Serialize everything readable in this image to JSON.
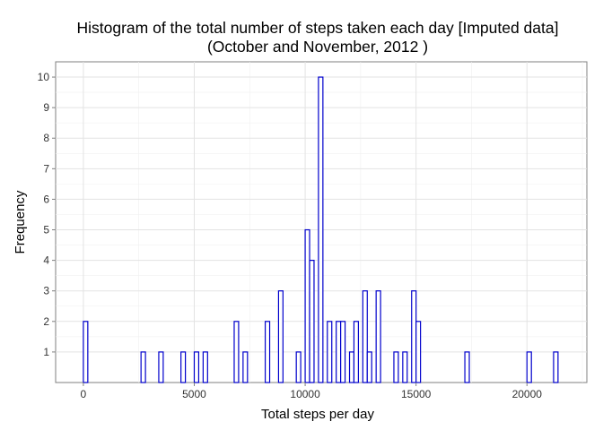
{
  "chart_data": {
    "type": "bar",
    "title": "Histogram of the total number of steps taken each day [Imputed data]",
    "subtitle": "(October and November, 2012 )",
    "xlabel": "Total steps per day",
    "ylabel": "Frequency",
    "xlim": [
      -1250,
      22700
    ],
    "ylim": [
      0,
      10.5
    ],
    "x_ticks": [
      0,
      5000,
      10000,
      15000,
      20000
    ],
    "x_tick_labels": [
      "0",
      "5000",
      "10000",
      "15000",
      "20000"
    ],
    "y_ticks": [
      1,
      2,
      3,
      4,
      5,
      6,
      7,
      8,
      9,
      10
    ],
    "y_tick_labels": [
      "1",
      "2",
      "3",
      "4",
      "5",
      "6",
      "7",
      "8",
      "9",
      "10"
    ],
    "bin_width": 200,
    "grid": true,
    "bar_outline_color": "#0000cc",
    "bar_fill_color": "#ffffff",
    "series": [
      {
        "bins": [
          {
            "x": 0,
            "count": 2
          },
          {
            "x": 2600,
            "count": 1
          },
          {
            "x": 3400,
            "count": 1
          },
          {
            "x": 4400,
            "count": 1
          },
          {
            "x": 5000,
            "count": 1
          },
          {
            "x": 5400,
            "count": 1
          },
          {
            "x": 6800,
            "count": 2
          },
          {
            "x": 7200,
            "count": 1
          },
          {
            "x": 8200,
            "count": 2
          },
          {
            "x": 8800,
            "count": 3
          },
          {
            "x": 9600,
            "count": 1
          },
          {
            "x": 10000,
            "count": 5
          },
          {
            "x": 10200,
            "count": 4
          },
          {
            "x": 10600,
            "count": 10
          },
          {
            "x": 11000,
            "count": 2
          },
          {
            "x": 11400,
            "count": 2
          },
          {
            "x": 11600,
            "count": 2
          },
          {
            "x": 12000,
            "count": 1
          },
          {
            "x": 12200,
            "count": 2
          },
          {
            "x": 12600,
            "count": 3
          },
          {
            "x": 12800,
            "count": 1
          },
          {
            "x": 13200,
            "count": 3
          },
          {
            "x": 14000,
            "count": 1
          },
          {
            "x": 14400,
            "count": 1
          },
          {
            "x": 14800,
            "count": 3
          },
          {
            "x": 15000,
            "count": 2
          },
          {
            "x": 17200,
            "count": 1
          },
          {
            "x": 20000,
            "count": 1
          },
          {
            "x": 21200,
            "count": 1
          }
        ]
      }
    ]
  }
}
